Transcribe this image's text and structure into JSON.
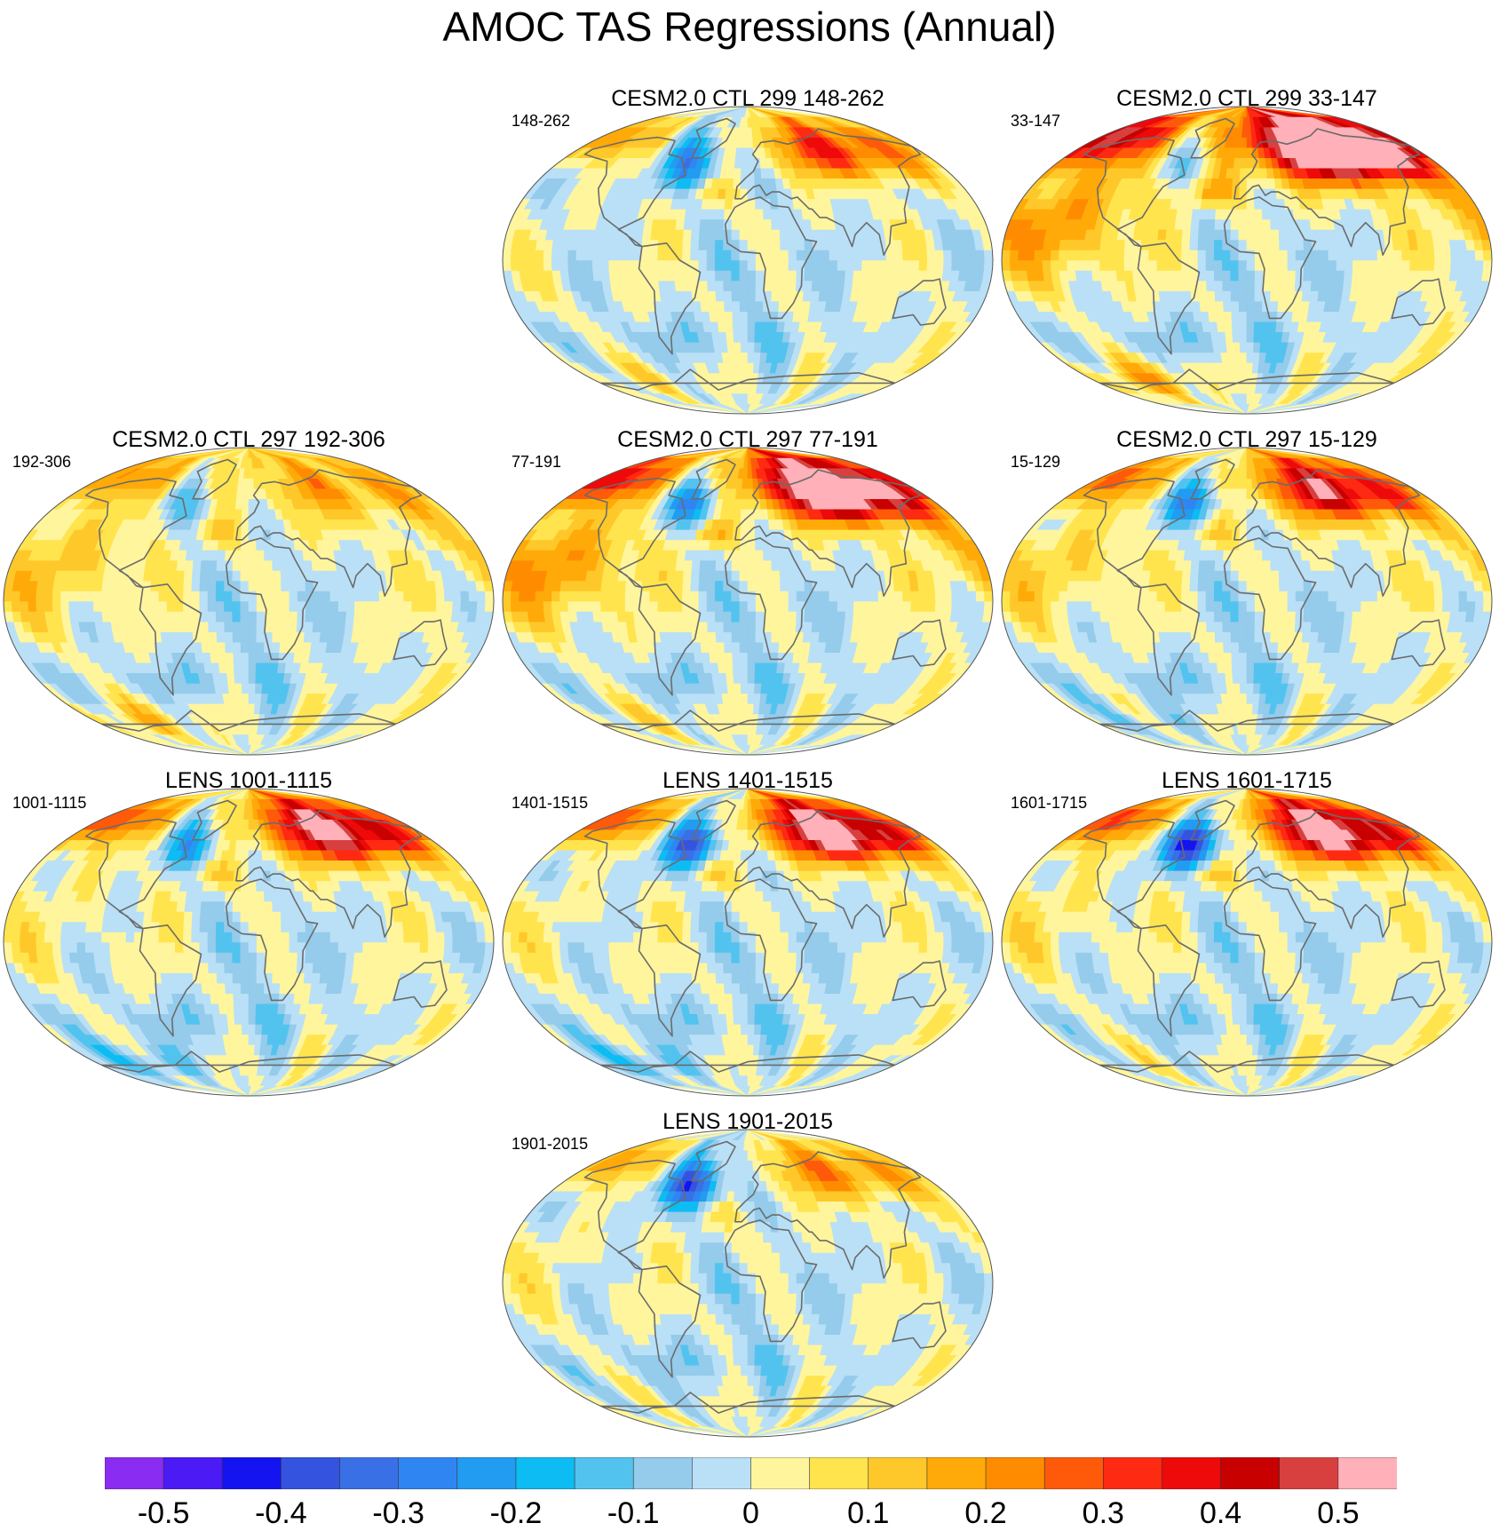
{
  "title": "AMOC TAS Regressions (Annual)",
  "colors": {
    "land_outline": "#6b6b6b",
    "frame": "#555555",
    "levels": [
      "#8a2cf2",
      "#4b1af5",
      "#1414f0",
      "#3454e0",
      "#3a70e6",
      "#2f86f2",
      "#229cf0",
      "#0dbcf3",
      "#52c3ef",
      "#95cbeb",
      "#b9e0f6",
      "#fff59d",
      "#ffe44e",
      "#ffc82a",
      "#ffaa08",
      "#ff8c00",
      "#ff5a0a",
      "#ff2a12",
      "#ee0a0a",
      "#c80000",
      "#d84040",
      "#ffb0b8"
    ]
  },
  "chart_data": {
    "type": "heatmap",
    "colorbar": {
      "ticks": [
        "-0.5",
        "-0.4",
        "-0.3",
        "-0.2",
        "-0.1",
        "0",
        "0.1",
        "0.2",
        "0.3",
        "0.4",
        "0.5"
      ],
      "range": [
        -0.55,
        0.55
      ],
      "step": 0.05
    },
    "panels": [
      {
        "title": "CESM2.0 CTL 299 148-262",
        "label": "148-262",
        "nh_scale": 0.75,
        "nh_bias": -0.05,
        "eu_scale": 0.8,
        "labrador": -0.22,
        "pacific": 0.0,
        "southern": 0.05
      },
      {
        "title": "CESM2.0 CTL 299 33-147",
        "label": "33-147",
        "nh_scale": 1.15,
        "nh_bias": 0.12,
        "eu_scale": 1.1,
        "labrador": -0.12,
        "pacific": 0.2,
        "southern": 0.15
      },
      {
        "title": "CESM2.0 CTL 297 192-306",
        "label": "192-306",
        "nh_scale": 0.55,
        "nh_bias": 0.05,
        "eu_scale": 0.45,
        "labrador": -0.1,
        "pacific": 0.12,
        "southern": 0.1
      },
      {
        "title": "CESM2.0 CTL 297 77-191",
        "label": "77-191",
        "nh_scale": 1.05,
        "nh_bias": 0.05,
        "eu_scale": 1.1,
        "labrador": -0.25,
        "pacific": 0.2,
        "southern": 0.05
      },
      {
        "title": "CESM2.0 CTL 297 15-129",
        "label": "15-129",
        "nh_scale": 0.85,
        "nh_bias": 0.0,
        "eu_scale": 0.9,
        "labrador": -0.22,
        "pacific": 0.1,
        "southern": -0.05
      },
      {
        "title": "LENS 1001-1115",
        "label": "1001-1115",
        "nh_scale": 0.9,
        "nh_bias": 0.0,
        "eu_scale": 1.0,
        "labrador": -0.2,
        "pacific": 0.03,
        "southern": -0.12
      },
      {
        "title": "LENS 1401-1515",
        "label": "1401-1515",
        "nh_scale": 1.0,
        "nh_bias": -0.05,
        "eu_scale": 1.05,
        "labrador": -0.3,
        "pacific": 0.02,
        "southern": -0.12
      },
      {
        "title": "LENS 1601-1715",
        "label": "1601-1715",
        "nh_scale": 1.0,
        "nh_bias": -0.02,
        "eu_scale": 1.0,
        "labrador": -0.38,
        "pacific": 0.05,
        "southern": 0.02
      },
      {
        "title": "LENS 1901-2015",
        "label": "1901-2015",
        "nh_scale": 0.75,
        "nh_bias": -0.05,
        "eu_scale": 0.55,
        "labrador": -0.32,
        "pacific": 0.02,
        "southern": 0.0
      }
    ]
  }
}
